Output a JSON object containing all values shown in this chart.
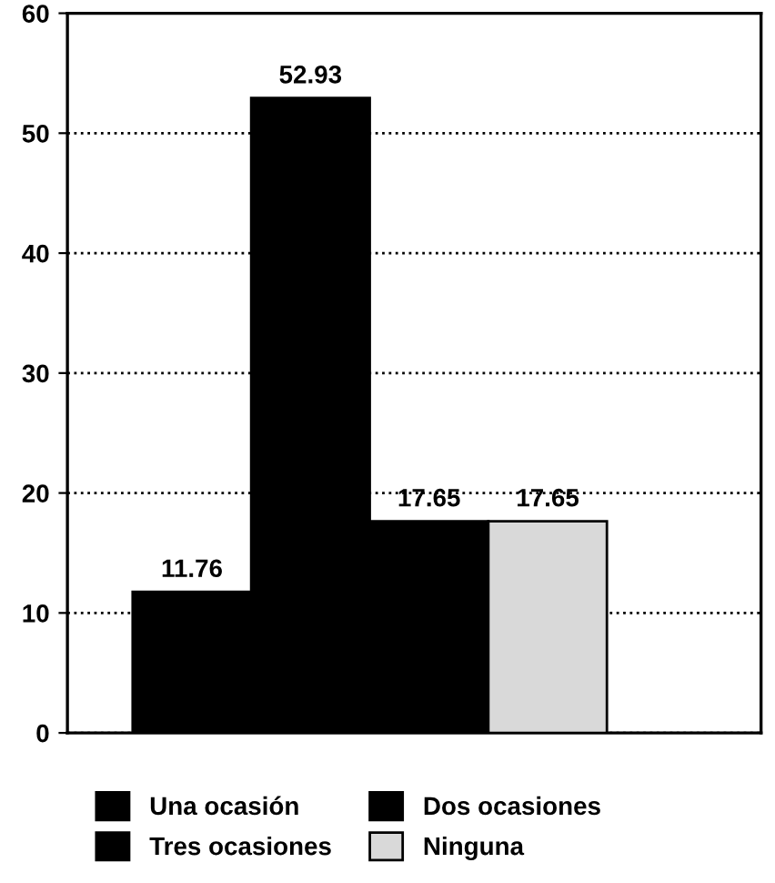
{
  "chart_data": {
    "type": "bar",
    "categories": [
      null,
      null,
      null,
      null
    ],
    "series": [
      {
        "name": "Una ocasión",
        "color": "#000000",
        "values": [
          11.76,
          null,
          null,
          null
        ]
      },
      {
        "name": "Dos ocasiones",
        "color": "#000000",
        "values": [
          null,
          52.93,
          null,
          null
        ]
      },
      {
        "name": "Tres ocasiones",
        "color": "#000000",
        "values": [
          null,
          null,
          17.65,
          null
        ]
      },
      {
        "name": "Ninguna",
        "color": "#d9d9d9",
        "values": [
          null,
          null,
          null,
          17.65
        ]
      }
    ],
    "ylim": [
      0,
      60
    ],
    "yticks": [
      0,
      10,
      20,
      30,
      40,
      50,
      60
    ],
    "stacked": true,
    "grid": "y",
    "legend": "bottom",
    "data_labels": true
  }
}
